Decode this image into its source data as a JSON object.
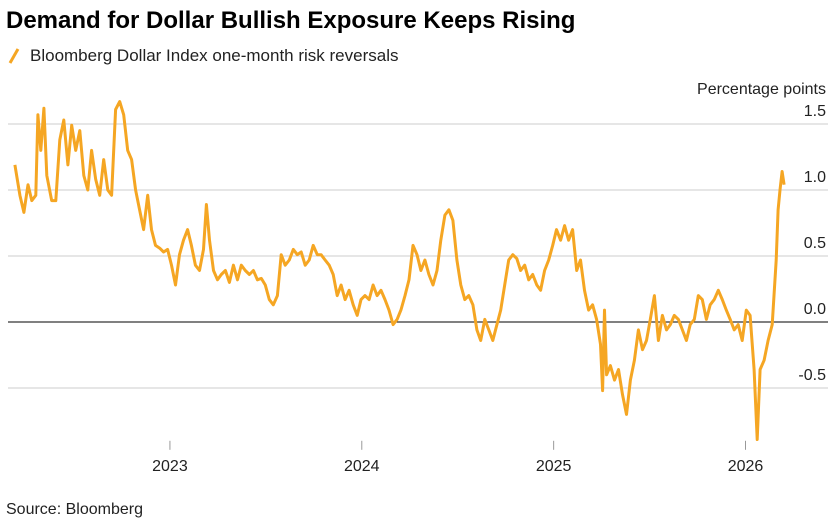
{
  "chart_data": {
    "type": "line",
    "title": "Demand for Dollar Bullish Exposure Keeps Rising",
    "y_label": "Percentage points",
    "source": "Source: Bloomberg",
    "xlim": [
      2022.156,
      2026.43
    ],
    "xticks": [
      2023,
      2024,
      2025,
      2026
    ],
    "ylim": [
      -0.9,
      1.7
    ],
    "yticks": [
      {
        "value": 1.5,
        "label": "1.5"
      },
      {
        "value": 1,
        "label": "1.0"
      },
      0.5,
      {
        "value": 0,
        "label": "0.0"
      },
      -0.5
    ],
    "grid": true,
    "series": [
      {
        "name": "Bloomberg Dollar Index one-month risk reversals",
        "color": "#f5a623",
        "x": [
          2022.192,
          2022.218,
          2022.239,
          2022.26,
          2022.28,
          2022.301,
          2022.312,
          2022.327,
          2022.343,
          2022.358,
          2022.384,
          2022.405,
          2022.426,
          2022.447,
          2022.468,
          2022.488,
          2022.509,
          2022.53,
          2022.551,
          2022.572,
          2022.592,
          2022.613,
          2022.634,
          2022.655,
          2022.676,
          2022.696,
          2022.717,
          2022.738,
          2022.759,
          2022.78,
          2022.8,
          2022.821,
          2022.842,
          2022.863,
          2022.884,
          2022.904,
          2022.925,
          2022.946,
          2022.967,
          2022.988,
          2023.008,
          2023.029,
          2023.05,
          2023.071,
          2023.092,
          2023.112,
          2023.133,
          2023.154,
          2023.175,
          2023.19,
          2023.206,
          2023.227,
          2023.248,
          2023.268,
          2023.289,
          2023.31,
          2023.331,
          2023.352,
          2023.372,
          2023.393,
          2023.414,
          2023.435,
          2023.456,
          2023.476,
          2023.497,
          2023.518,
          2023.539,
          2023.56,
          2023.58,
          2023.601,
          2023.622,
          2023.643,
          2023.664,
          2023.684,
          2023.705,
          2023.726,
          2023.747,
          2023.768,
          2023.788,
          2023.809,
          2023.83,
          2023.851,
          2023.872,
          2023.892,
          2023.913,
          2023.934,
          2023.955,
          2023.976,
          2023.996,
          2024.017,
          2024.038,
          2024.059,
          2024.08,
          2024.1,
          2024.121,
          2024.142,
          2024.163,
          2024.184,
          2024.204,
          2024.225,
          2024.246,
          2024.267,
          2024.288,
          2024.308,
          2024.329,
          2024.35,
          2024.371,
          2024.392,
          2024.412,
          2024.433,
          2024.454,
          2024.475,
          2024.496,
          2024.516,
          2024.537,
          2024.558,
          2024.579,
          2024.6,
          2024.62,
          2024.641,
          2024.662,
          2024.683,
          2024.704,
          2024.724,
          2024.745,
          2024.766,
          2024.787,
          2024.808,
          2024.828,
          2024.849,
          2024.87,
          2024.891,
          2024.912,
          2024.932,
          2024.953,
          2024.974,
          2024.995,
          2025.015,
          2025.036,
          2025.057,
          2025.078,
          2025.099,
          2025.12,
          2025.14,
          2025.161,
          2025.182,
          2025.203,
          2025.224,
          2025.244,
          2025.255,
          2025.265,
          2025.276,
          2025.296,
          2025.317,
          2025.338,
          2025.359,
          2025.38,
          2025.4,
          2025.421,
          2025.442,
          2025.463,
          2025.484,
          2025.504,
          2025.525,
          2025.546,
          2025.567,
          2025.588,
          2025.608,
          2025.629,
          2025.65,
          2025.671,
          2025.692,
          2025.712,
          2025.733,
          2025.754,
          2025.775,
          2025.796,
          2025.816,
          2025.837,
          2025.858,
          2025.879,
          2025.9,
          2025.92,
          2025.941,
          2025.962,
          2025.983,
          2026.004,
          2026.024,
          2026.045,
          2026.061,
          2026.076,
          2026.097,
          2026.118,
          2026.139,
          2026.16,
          2026.17,
          2026.18,
          2026.191,
          2026.201
        ],
        "values": [
          1.19,
          0.96,
          0.83,
          1.04,
          0.92,
          0.96,
          1.57,
          1.3,
          1.62,
          1.11,
          0.92,
          0.92,
          1.38,
          1.53,
          1.19,
          1.49,
          1.3,
          1.45,
          1.11,
          1.0,
          1.3,
          1.08,
          0.96,
          1.23,
          1.0,
          0.96,
          1.61,
          1.67,
          1.57,
          1.3,
          1.23,
          1.0,
          0.85,
          0.7,
          0.96,
          0.7,
          0.58,
          0.56,
          0.53,
          0.55,
          0.43,
          0.28,
          0.51,
          0.62,
          0.7,
          0.58,
          0.43,
          0.39,
          0.55,
          0.89,
          0.62,
          0.39,
          0.32,
          0.36,
          0.39,
          0.3,
          0.43,
          0.32,
          0.43,
          0.39,
          0.36,
          0.39,
          0.32,
          0.33,
          0.28,
          0.17,
          0.13,
          0.2,
          0.51,
          0.43,
          0.47,
          0.55,
          0.51,
          0.53,
          0.43,
          0.47,
          0.58,
          0.51,
          0.51,
          0.47,
          0.43,
          0.36,
          0.2,
          0.28,
          0.17,
          0.24,
          0.13,
          0.05,
          0.17,
          0.2,
          0.17,
          0.28,
          0.2,
          0.24,
          0.17,
          0.09,
          -0.02,
          0.02,
          0.09,
          0.2,
          0.32,
          0.58,
          0.51,
          0.39,
          0.47,
          0.36,
          0.28,
          0.39,
          0.62,
          0.81,
          0.85,
          0.77,
          0.47,
          0.28,
          0.17,
          0.2,
          0.13,
          -0.06,
          -0.14,
          0.02,
          -0.06,
          -0.14,
          -0.02,
          0.09,
          0.28,
          0.47,
          0.51,
          0.48,
          0.39,
          0.43,
          0.32,
          0.36,
          0.28,
          0.24,
          0.39,
          0.47,
          0.58,
          0.7,
          0.62,
          0.73,
          0.62,
          0.7,
          0.39,
          0.47,
          0.24,
          0.09,
          0.13,
          0.02,
          -0.17,
          -0.52,
          0.09,
          -0.4,
          -0.33,
          -0.44,
          -0.36,
          -0.55,
          -0.7,
          -0.44,
          -0.29,
          -0.06,
          -0.21,
          -0.14,
          0.02,
          0.2,
          -0.14,
          0.05,
          -0.06,
          -0.02,
          0.05,
          0.02,
          -0.06,
          -0.14,
          -0.02,
          0.02,
          0.2,
          0.17,
          0.02,
          0.13,
          0.17,
          0.24,
          0.17,
          0.09,
          0.02,
          -0.06,
          -0.02,
          -0.14,
          0.09,
          0.05,
          -0.36,
          -0.89,
          -0.36,
          -0.29,
          -0.14,
          -0.02,
          0.47,
          0.85,
          1.0,
          1.14,
          1.04
        ]
      }
    ]
  }
}
